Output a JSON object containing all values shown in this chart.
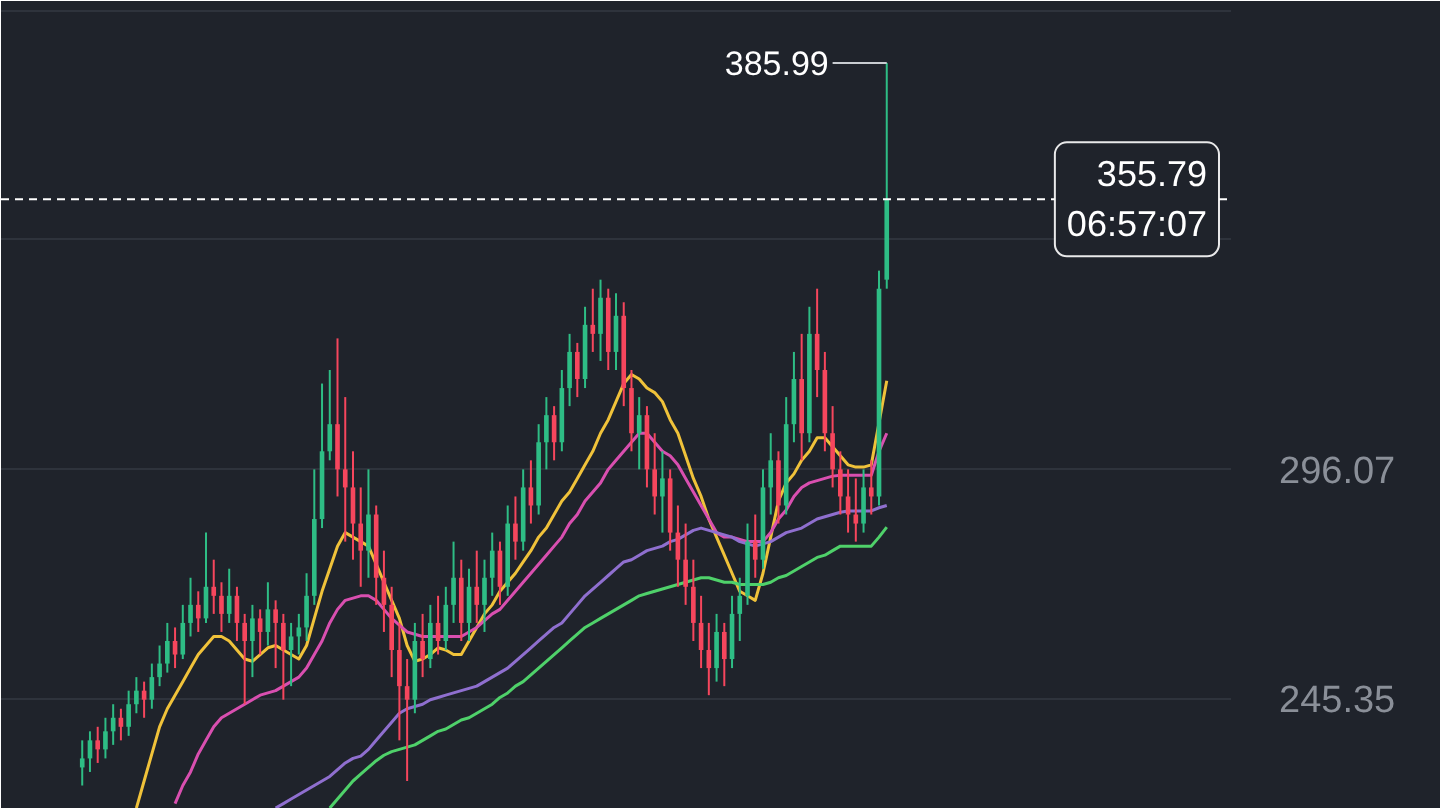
{
  "chart_data": {
    "type": "candlestick",
    "categories": [
      null,
      null,
      null,
      null,
      null,
      null,
      null,
      null,
      null,
      null,
      null,
      null,
      null,
      null,
      null,
      null,
      null,
      null,
      null,
      null,
      null,
      null,
      null,
      null,
      null,
      null,
      null,
      null,
      null,
      null,
      null,
      null,
      null,
      null,
      null,
      null,
      null,
      null,
      null,
      null,
      null,
      null,
      null,
      null,
      null,
      null,
      null,
      null,
      null,
      null,
      null,
      null,
      null,
      null,
      null,
      null,
      null,
      null,
      null,
      null,
      null,
      null,
      null,
      null,
      null,
      null,
      null,
      null,
      null,
      null,
      null,
      null,
      null,
      null,
      null,
      null,
      null,
      null,
      null,
      null,
      null,
      null,
      null,
      null,
      null,
      null,
      null,
      null,
      null,
      null,
      null,
      null,
      null,
      null,
      null,
      null,
      null,
      null,
      null,
      null,
      null,
      null,
      null,
      null,
      null,
      null,
      null,
      null,
      null,
      null,
      null,
      null,
      null,
      null,
      null,
      null,
      null,
      null,
      null,
      null,
      null,
      null,
      null,
      null,
      null,
      null,
      null,
      null,
      null,
      null,
      null,
      null,
      null,
      null,
      null,
      null,
      null,
      null,
      null,
      null,
      null,
      null,
      null,
      null,
      null,
      null,
      null,
      null,
      null,
      null,
      null,
      null,
      null,
      null,
      null,
      null,
      null,
      null,
      null
    ],
    "ohlc": [
      null,
      null,
      null,
      null,
      null,
      null,
      null,
      null,
      null,
      null,
      [
        230,
        236,
        226,
        232
      ],
      [
        232,
        238,
        229,
        236
      ],
      [
        236,
        239,
        231,
        234
      ],
      [
        234,
        241,
        232,
        238
      ],
      [
        238,
        244,
        235,
        241
      ],
      [
        241,
        243,
        236,
        239
      ],
      [
        239,
        247,
        237,
        244
      ],
      [
        244,
        250,
        242,
        247
      ],
      [
        247,
        249,
        241,
        245
      ],
      [
        245,
        253,
        243,
        250
      ],
      [
        250,
        257,
        248,
        253
      ],
      [
        253,
        262,
        251,
        258
      ],
      [
        258,
        261,
        252,
        255
      ],
      [
        255,
        266,
        254,
        262
      ],
      [
        262,
        272,
        259,
        266
      ],
      [
        266,
        269,
        260,
        263
      ],
      [
        263,
        282,
        262,
        270
      ],
      [
        270,
        276,
        264,
        268
      ],
      [
        268,
        271,
        260,
        264
      ],
      [
        264,
        274,
        262,
        268
      ],
      [
        268,
        270,
        258,
        262
      ],
      [
        262,
        264,
        244,
        258
      ],
      [
        258,
        266,
        250,
        263
      ],
      [
        263,
        265,
        255,
        260
      ],
      [
        260,
        271,
        257,
        265
      ],
      [
        265,
        267,
        252,
        262
      ],
      [
        262,
        264,
        245,
        256
      ],
      [
        256,
        262,
        248,
        259
      ],
      [
        259,
        264,
        255,
        261
      ],
      [
        261,
        273,
        258,
        268
      ],
      [
        268,
        296,
        266,
        285
      ],
      [
        285,
        315,
        283,
        300
      ],
      [
        300,
        318,
        298,
        306
      ],
      [
        306,
        325,
        290,
        296
      ],
      [
        296,
        312,
        280,
        292
      ],
      [
        292,
        300,
        276,
        284
      ],
      [
        284,
        292,
        270,
        278
      ],
      [
        278,
        296,
        272,
        286
      ],
      [
        286,
        288,
        266,
        272
      ],
      [
        272,
        278,
        260,
        266
      ],
      [
        266,
        270,
        250,
        256
      ],
      [
        256,
        262,
        236,
        248
      ],
      [
        248,
        254,
        227,
        245
      ],
      [
        245,
        262,
        242,
        258
      ],
      [
        258,
        264,
        250,
        254
      ],
      [
        254,
        266,
        252,
        262
      ],
      [
        262,
        268,
        255,
        258
      ],
      [
        258,
        270,
        256,
        266
      ],
      [
        266,
        280,
        262,
        272
      ],
      [
        272,
        276,
        258,
        262
      ],
      [
        262,
        274,
        258,
        270
      ],
      [
        270,
        278,
        262,
        266
      ],
      [
        266,
        276,
        260,
        272
      ],
      [
        272,
        282,
        268,
        278
      ],
      [
        278,
        280,
        266,
        270
      ],
      [
        270,
        288,
        268,
        284
      ],
      [
        284,
        290,
        276,
        280
      ],
      [
        280,
        296,
        278,
        292
      ],
      [
        292,
        298,
        284,
        288
      ],
      [
        288,
        306,
        286,
        302
      ],
      [
        302,
        312,
        296,
        308
      ],
      [
        308,
        310,
        298,
        302
      ],
      [
        302,
        318,
        300,
        314
      ],
      [
        314,
        326,
        310,
        322
      ],
      [
        322,
        324,
        312,
        316
      ],
      [
        316,
        332,
        314,
        328
      ],
      [
        328,
        336,
        322,
        326
      ],
      [
        326,
        338,
        320,
        334
      ],
      [
        334,
        336,
        318,
        322
      ],
      [
        322,
        335,
        318,
        330
      ],
      [
        330,
        333,
        310,
        314
      ],
      [
        314,
        318,
        300,
        304
      ],
      [
        304,
        312,
        296,
        308
      ],
      [
        308,
        310,
        292,
        296
      ],
      [
        296,
        304,
        286,
        290
      ],
      [
        290,
        300,
        282,
        294
      ],
      [
        294,
        296,
        278,
        282
      ],
      [
        282,
        288,
        270,
        276
      ],
      [
        276,
        284,
        266,
        270
      ],
      [
        270,
        276,
        258,
        262
      ],
      [
        262,
        268,
        252,
        256
      ],
      [
        256,
        262,
        246,
        252
      ],
      [
        252,
        264,
        249,
        260
      ],
      [
        260,
        262,
        248,
        254
      ],
      [
        254,
        268,
        252,
        264
      ],
      [
        264,
        272,
        258,
        268
      ],
      [
        268,
        284,
        266,
        280
      ],
      [
        280,
        286,
        272,
        276
      ],
      [
        276,
        296,
        274,
        292
      ],
      [
        292,
        304,
        286,
        298
      ],
      [
        298,
        300,
        284,
        288
      ],
      [
        288,
        312,
        286,
        306
      ],
      [
        306,
        322,
        302,
        316
      ],
      [
        316,
        326,
        298,
        304
      ],
      [
        304,
        332,
        302,
        326
      ],
      [
        326,
        336,
        312,
        318
      ],
      [
        318,
        322,
        300,
        304
      ],
      [
        304,
        310,
        292,
        296
      ],
      [
        296,
        300,
        286,
        290
      ],
      [
        290,
        296,
        282,
        286
      ],
      [
        286,
        294,
        280,
        284
      ],
      [
        284,
        296,
        282,
        292
      ],
      [
        292,
        298,
        286,
        290
      ],
      [
        290,
        340,
        288,
        336
      ],
      [
        338,
        385.99,
        336,
        355.79
      ],
      null,
      null,
      null,
      null,
      null,
      null,
      null,
      null,
      null,
      null,
      null,
      null,
      null,
      null,
      null,
      null,
      null,
      null,
      null,
      null,
      null,
      null,
      null,
      null,
      null,
      null,
      null,
      null,
      null,
      null,
      null,
      null,
      null,
      null,
      null,
      null,
      null,
      null,
      null,
      null,
      null,
      null,
      null,
      null
    ],
    "series": [
      {
        "type": "line",
        "color": "#f0c23a",
        "values": [
          null,
          null,
          null,
          null,
          null,
          null,
          null,
          null,
          null,
          null,
          null,
          null,
          null,
          null,
          null,
          null,
          null,
          221,
          227,
          233,
          239,
          243,
          246,
          249,
          252,
          255,
          257,
          259,
          259,
          258,
          256,
          254,
          253.5,
          255,
          256.5,
          257,
          256,
          255,
          254,
          257,
          263,
          269,
          274,
          279,
          282,
          281,
          280,
          279,
          275,
          271,
          267,
          263,
          257,
          253.5,
          254,
          255,
          256.5,
          256,
          255,
          255,
          258,
          261,
          264,
          266,
          269,
          271,
          273,
          275.5,
          278,
          281,
          283,
          286,
          289,
          291,
          294,
          297,
          300,
          304,
          307,
          311,
          315,
          317,
          316,
          314,
          313,
          311,
          307,
          304,
          299,
          294,
          290,
          285,
          281,
          277,
          273,
          269,
          268,
          267,
          273,
          281,
          289,
          293,
          295,
          298,
          300,
          303,
          303,
          301,
          299,
          297,
          296.5,
          296.5,
          297,
          null,
          315.6,
          null,
          null,
          null,
          null,
          null,
          null,
          null,
          null,
          null,
          null,
          null,
          null,
          null,
          null,
          null,
          null,
          null,
          null,
          null,
          null,
          null,
          null,
          null,
          null,
          null,
          null,
          null,
          null,
          null,
          null,
          null,
          null,
          null,
          null,
          null,
          null,
          null,
          null,
          null,
          null,
          null,
          null,
          null,
          null
        ]
      },
      {
        "type": "line",
        "color": "#d94fb0",
        "values": [
          null,
          null,
          null,
          null,
          null,
          null,
          null,
          null,
          null,
          null,
          null,
          null,
          null,
          null,
          null,
          null,
          null,
          null,
          null,
          null,
          null,
          null,
          222,
          226,
          229,
          233,
          236,
          239,
          241,
          242,
          243,
          244,
          245,
          246,
          246.5,
          247,
          248,
          249,
          250,
          252,
          255,
          258,
          262,
          265,
          267,
          267.5,
          268,
          268,
          267,
          265,
          263,
          261.5,
          260,
          259.5,
          259,
          259,
          259,
          259,
          259,
          259,
          260,
          261,
          262.5,
          264,
          265,
          267,
          269,
          271,
          273,
          275,
          277,
          279,
          281,
          284,
          286,
          289,
          291,
          293,
          296,
          298,
          300,
          302,
          304,
          304,
          302,
          300,
          299,
          297,
          294,
          291,
          288,
          285,
          282,
          281,
          281,
          280.5,
          280,
          280,
          280,
          282,
          285,
          287,
          290,
          292,
          293,
          293.5,
          294,
          294.5,
          294.7,
          294.7,
          294.7,
          294.7,
          294.7,
          300,
          304,
          null,
          null,
          null,
          null,
          null,
          null,
          null,
          null,
          null,
          null,
          null,
          null,
          null,
          null,
          null,
          null,
          null,
          null,
          null,
          null,
          null,
          null,
          null,
          null,
          null,
          null,
          null,
          null,
          null,
          null,
          null,
          null,
          null,
          null,
          null,
          null,
          null,
          null,
          null,
          null,
          null,
          null,
          null,
          null
        ]
      },
      {
        "type": "line",
        "color": "#8f6fcf",
        "values": [
          null,
          null,
          null,
          null,
          null,
          null,
          null,
          null,
          null,
          null,
          null,
          null,
          null,
          null,
          null,
          null,
          null,
          null,
          null,
          null,
          null,
          null,
          null,
          null,
          null,
          null,
          null,
          null,
          null,
          null,
          null,
          null,
          null,
          null,
          null,
          221,
          222,
          223,
          224,
          225,
          226,
          227,
          228,
          229.5,
          231,
          232,
          232.5,
          234,
          236,
          238,
          240,
          242,
          243,
          243.5,
          244,
          245,
          245.5,
          246,
          246.5,
          247,
          247.5,
          248,
          249,
          250,
          251,
          252,
          253.5,
          255,
          256.5,
          258,
          259.5,
          261,
          262,
          264,
          266,
          268,
          269.5,
          271,
          272.5,
          274,
          275.5,
          276,
          277,
          278,
          278.5,
          279,
          280,
          280.5,
          281.5,
          282.5,
          283,
          282.5,
          282,
          281.5,
          281,
          280,
          279.5,
          279,
          279.5,
          280,
          281,
          282,
          282.5,
          283,
          284,
          285,
          285.5,
          286,
          286.5,
          286.8,
          286.8,
          286.8,
          286.8,
          287.5,
          288,
          null,
          null,
          null,
          null,
          null,
          null,
          null,
          null,
          null,
          null,
          null,
          null,
          null,
          null,
          null,
          null,
          null,
          null,
          null,
          null,
          null,
          null,
          null,
          null,
          null,
          null,
          null,
          null,
          null,
          null,
          null,
          null,
          null,
          null,
          null,
          null,
          null,
          null,
          null,
          null,
          null,
          null,
          null,
          null
        ]
      },
      {
        "type": "line",
        "color": "#4fd16a",
        "values": [
          null,
          null,
          null,
          null,
          null,
          null,
          null,
          null,
          null,
          null,
          null,
          null,
          null,
          null,
          null,
          null,
          null,
          null,
          null,
          null,
          null,
          null,
          null,
          null,
          null,
          null,
          null,
          null,
          null,
          null,
          null,
          null,
          null,
          null,
          null,
          null,
          null,
          null,
          null,
          null,
          null,
          null,
          221,
          223,
          225,
          227,
          228.5,
          230,
          231.5,
          232.7,
          233.5,
          234,
          234.5,
          235,
          236,
          237,
          238,
          238.5,
          239.5,
          240.5,
          241,
          242,
          243,
          244,
          245.5,
          246.5,
          248,
          249,
          250.5,
          252,
          253.5,
          255,
          256.5,
          258,
          259.5,
          261,
          262,
          263,
          264,
          265,
          266,
          267,
          268,
          268.5,
          269,
          269.5,
          270,
          270.5,
          271,
          271.5,
          272,
          272,
          271.5,
          271,
          271,
          270.5,
          270.5,
          270.5,
          270.5,
          271,
          272,
          272.5,
          273.5,
          274.5,
          275.5,
          276.5,
          277,
          278,
          279,
          279,
          279,
          279,
          279,
          281,
          283.2,
          null,
          null,
          null,
          null,
          null,
          null,
          null,
          null,
          null,
          null,
          null,
          null,
          null,
          null,
          null,
          null,
          null,
          null,
          null,
          null,
          null,
          null,
          null,
          null,
          null,
          null,
          null,
          null,
          null,
          null,
          null,
          null,
          null,
          null,
          null,
          null,
          null,
          null,
          null,
          null,
          null,
          null,
          null,
          null
        ]
      }
    ],
    "ylim": [
      220.8,
      399.7
    ],
    "yticks": [
      245.35,
      296.07,
      {
        "value": 346.79,
        "label": null
      },
      {
        "value": 397.51,
        "label": null
      }
    ],
    "grid": "y",
    "tick_labels": "y",
    "ref_lines": [
      {
        "axis": "y",
        "value": 355.79,
        "label": "355.79\n06:57:07",
        "line_style": "dashed",
        "color": "#ffffff"
      }
    ],
    "annotations": [
      "385.99"
    ]
  }
}
